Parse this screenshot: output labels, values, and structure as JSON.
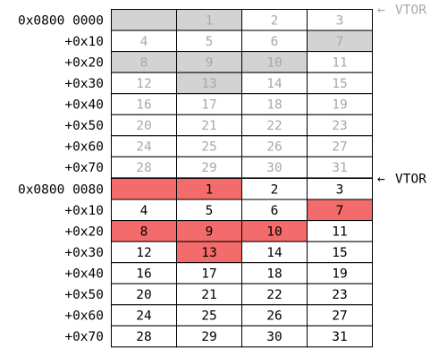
{
  "colors": {
    "faded_text": "#a8a8a8",
    "faded_fill": "#d3d3d3",
    "active_text": "#000000",
    "active_fill": "#f46b6b",
    "grid_line": "#000000",
    "faded_marker": "#a8a8a8"
  },
  "tables": [
    {
      "id": "old",
      "style": "faded",
      "rows": [
        {
          "address": "0x0800 0000",
          "cells": [
            {
              "v": "",
              "hl": true
            },
            {
              "v": "1",
              "hl": true
            },
            {
              "v": "2",
              "hl": false
            },
            {
              "v": "3",
              "hl": false
            }
          ]
        },
        {
          "address": "+0x10",
          "cells": [
            {
              "v": "4",
              "hl": false
            },
            {
              "v": "5",
              "hl": false
            },
            {
              "v": "6",
              "hl": false
            },
            {
              "v": "7",
              "hl": true
            }
          ]
        },
        {
          "address": "+0x20",
          "cells": [
            {
              "v": "8",
              "hl": true
            },
            {
              "v": "9",
              "hl": true
            },
            {
              "v": "10",
              "hl": true
            },
            {
              "v": "11",
              "hl": false
            }
          ]
        },
        {
          "address": "+0x30",
          "cells": [
            {
              "v": "12",
              "hl": false
            },
            {
              "v": "13",
              "hl": true
            },
            {
              "v": "14",
              "hl": false
            },
            {
              "v": "15",
              "hl": false
            }
          ]
        },
        {
          "address": "+0x40",
          "cells": [
            {
              "v": "16",
              "hl": false
            },
            {
              "v": "17",
              "hl": false
            },
            {
              "v": "18",
              "hl": false
            },
            {
              "v": "19",
              "hl": false
            }
          ]
        },
        {
          "address": "+0x50",
          "cells": [
            {
              "v": "20",
              "hl": false
            },
            {
              "v": "21",
              "hl": false
            },
            {
              "v": "22",
              "hl": false
            },
            {
              "v": "23",
              "hl": false
            }
          ]
        },
        {
          "address": "+0x60",
          "cells": [
            {
              "v": "24",
              "hl": false
            },
            {
              "v": "25",
              "hl": false
            },
            {
              "v": "26",
              "hl": false
            },
            {
              "v": "27",
              "hl": false
            }
          ]
        },
        {
          "address": "+0x70",
          "cells": [
            {
              "v": "28",
              "hl": false
            },
            {
              "v": "29",
              "hl": false
            },
            {
              "v": "30",
              "hl": false
            },
            {
              "v": "31",
              "hl": false
            }
          ]
        }
      ],
      "marker": {
        "arrow": "←",
        "label": "VTOR"
      }
    },
    {
      "id": "new",
      "style": "active",
      "rows": [
        {
          "address": "0x0800 0080",
          "cells": [
            {
              "v": "",
              "hl": true
            },
            {
              "v": "1",
              "hl": true
            },
            {
              "v": "2",
              "hl": false
            },
            {
              "v": "3",
              "hl": false
            }
          ]
        },
        {
          "address": "+0x10",
          "cells": [
            {
              "v": "4",
              "hl": false
            },
            {
              "v": "5",
              "hl": false
            },
            {
              "v": "6",
              "hl": false
            },
            {
              "v": "7",
              "hl": true
            }
          ]
        },
        {
          "address": "+0x20",
          "cells": [
            {
              "v": "8",
              "hl": true
            },
            {
              "v": "9",
              "hl": true
            },
            {
              "v": "10",
              "hl": true
            },
            {
              "v": "11",
              "hl": false
            }
          ]
        },
        {
          "address": "+0x30",
          "cells": [
            {
              "v": "12",
              "hl": false
            },
            {
              "v": "13",
              "hl": true
            },
            {
              "v": "14",
              "hl": false
            },
            {
              "v": "15",
              "hl": false
            }
          ]
        },
        {
          "address": "+0x40",
          "cells": [
            {
              "v": "16",
              "hl": false
            },
            {
              "v": "17",
              "hl": false
            },
            {
              "v": "18",
              "hl": false
            },
            {
              "v": "19",
              "hl": false
            }
          ]
        },
        {
          "address": "+0x50",
          "cells": [
            {
              "v": "20",
              "hl": false
            },
            {
              "v": "21",
              "hl": false
            },
            {
              "v": "22",
              "hl": false
            },
            {
              "v": "23",
              "hl": false
            }
          ]
        },
        {
          "address": "+0x60",
          "cells": [
            {
              "v": "24",
              "hl": false
            },
            {
              "v": "25",
              "hl": false
            },
            {
              "v": "26",
              "hl": false
            },
            {
              "v": "27",
              "hl": false
            }
          ]
        },
        {
          "address": "+0x70",
          "cells": [
            {
              "v": "28",
              "hl": false
            },
            {
              "v": "29",
              "hl": false
            },
            {
              "v": "30",
              "hl": false
            },
            {
              "v": "31",
              "hl": false
            }
          ]
        }
      ],
      "marker": {
        "arrow": "←",
        "label": "VTOR"
      }
    }
  ]
}
